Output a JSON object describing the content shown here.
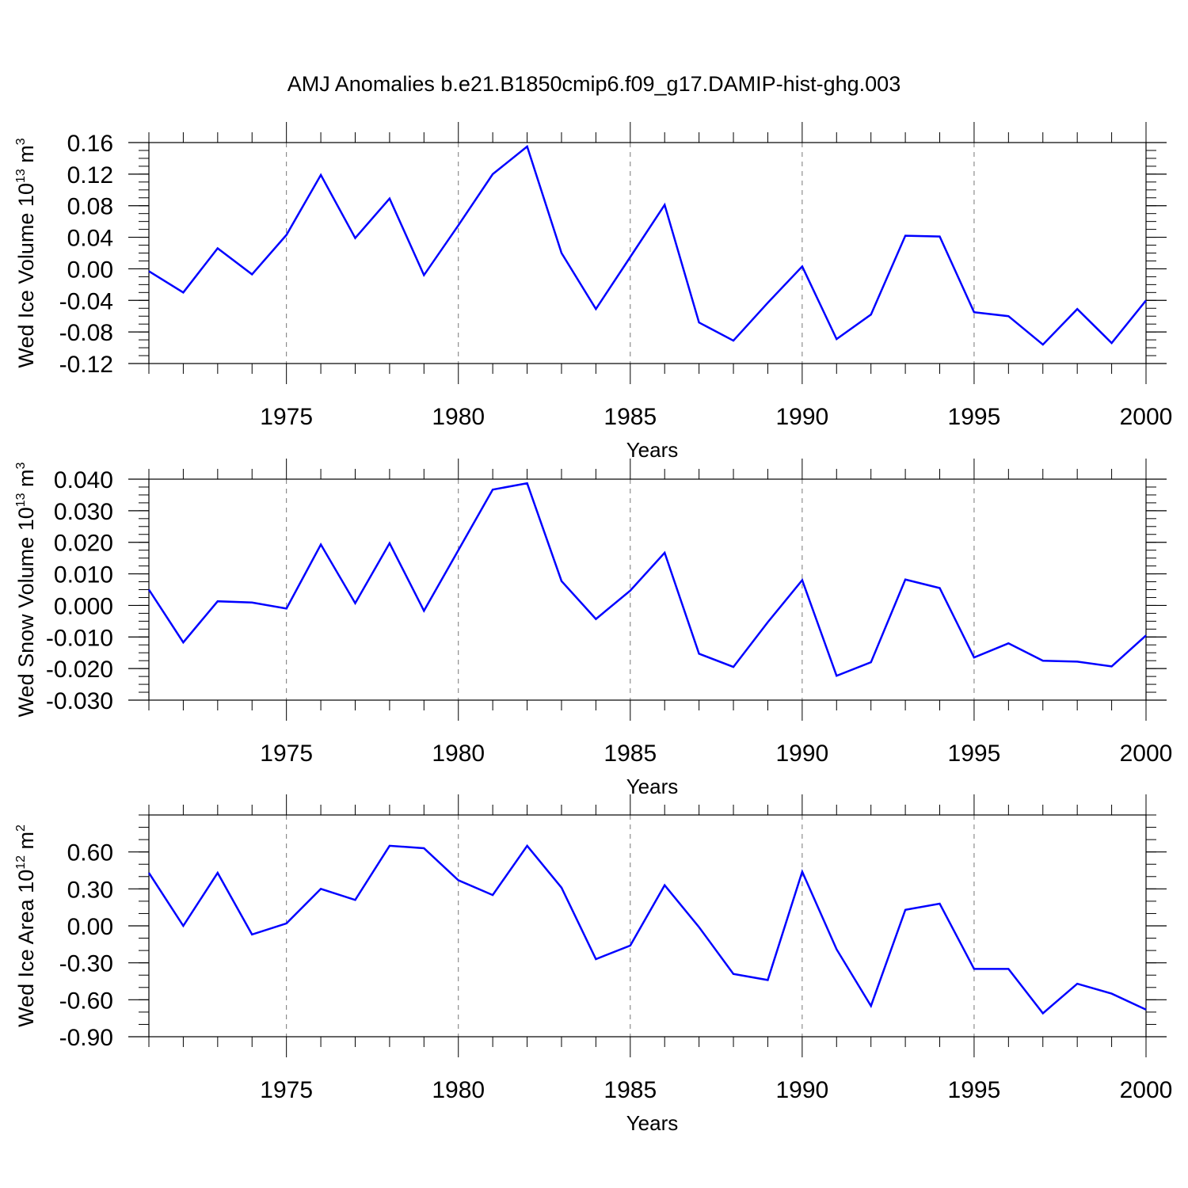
{
  "title": "AMJ Anomalies b.e21.B1850cmip6.f09_g17.DAMIP-hist-ghg.003",
  "line_color": "#0000ff",
  "chart_data": [
    {
      "type": "line",
      "ylabel": {
        "prefix": "Wed Ice Volume 10",
        "exp": "13",
        "unit": " m",
        "unit_exp": "3"
      },
      "xlabel": "Years",
      "xlim": [
        1971,
        2000
      ],
      "ylim": [
        -0.12,
        0.16
      ],
      "yticks": [
        -0.12,
        -0.08,
        -0.04,
        0.0,
        0.04,
        0.08,
        0.12,
        0.16
      ],
      "ytick_labels": [
        "-0.12",
        "-0.08",
        "-0.04",
        "0.00",
        "0.04",
        "0.08",
        "0.12",
        "0.16"
      ],
      "yminor_step": 0.01,
      "xticks": [
        1975,
        1980,
        1985,
        1990,
        1995,
        2000
      ],
      "xtick_labels": [
        "1975",
        "1980",
        "1985",
        "1990",
        "1995",
        "2000"
      ],
      "grid": "vertical dashed at major x ticks",
      "x": [
        1971,
        1972,
        1973,
        1974,
        1975,
        1976,
        1977,
        1978,
        1979,
        1980,
        1981,
        1982,
        1983,
        1984,
        1985,
        1986,
        1987,
        1988,
        1989,
        1990,
        1991,
        1992,
        1993,
        1994,
        1995,
        1996,
        1997,
        1998,
        1999,
        2000
      ],
      "values": [
        -0.003,
        -0.03,
        0.026,
        -0.007,
        0.043,
        0.119,
        0.039,
        0.089,
        -0.008,
        0.055,
        0.12,
        0.155,
        0.02,
        -0.051,
        0.015,
        0.081,
        -0.068,
        -0.091,
        -0.043,
        0.003,
        -0.089,
        -0.058,
        0.042,
        0.041,
        -0.055,
        -0.06,
        -0.096,
        -0.051,
        -0.094,
        -0.04
      ]
    },
    {
      "type": "line",
      "ylabel": {
        "prefix": "Wed Snow Volume 10",
        "exp": "13",
        "unit": " m",
        "unit_exp": "3"
      },
      "xlabel": "Years",
      "xlim": [
        1971,
        2000
      ],
      "ylim": [
        -0.03,
        0.04
      ],
      "yticks": [
        -0.03,
        -0.02,
        -0.01,
        0.0,
        0.01,
        0.02,
        0.03,
        0.04
      ],
      "ytick_labels": [
        "-0.030",
        "-0.020",
        "-0.010",
        "0.000",
        "0.010",
        "0.020",
        "0.030",
        "0.040"
      ],
      "yminor_step": 0.0025,
      "xticks": [
        1975,
        1980,
        1985,
        1990,
        1995,
        2000
      ],
      "xtick_labels": [
        "1975",
        "1980",
        "1985",
        "1990",
        "1995",
        "2000"
      ],
      "grid": "vertical dashed at major x ticks",
      "x": [
        1971,
        1972,
        1973,
        1974,
        1975,
        1976,
        1977,
        1978,
        1979,
        1980,
        1981,
        1982,
        1983,
        1984,
        1985,
        1986,
        1987,
        1988,
        1989,
        1990,
        1991,
        1992,
        1993,
        1994,
        1995,
        1996,
        1997,
        1998,
        1999,
        2000
      ],
      "values": [
        0.005,
        -0.0117,
        0.0013,
        0.0009,
        -0.001,
        0.0193,
        0.0007,
        0.0197,
        -0.0017,
        0.0175,
        0.0367,
        0.0387,
        0.0077,
        -0.0043,
        0.0047,
        0.0167,
        -0.0153,
        -0.0195,
        -0.0053,
        0.008,
        -0.0223,
        -0.018,
        0.0082,
        0.0055,
        -0.0165,
        -0.012,
        -0.0175,
        -0.0178,
        -0.0193,
        -0.0095
      ]
    },
    {
      "type": "line",
      "ylabel": {
        "prefix": "Wed Ice Area 10",
        "exp": "12",
        "unit": " m",
        "unit_exp": "2"
      },
      "xlabel": "Years",
      "xlim": [
        1971,
        2000
      ],
      "ylim": [
        -0.9,
        0.9
      ],
      "yticks": [
        -0.9,
        -0.6,
        -0.3,
        0.0,
        0.3,
        0.6
      ],
      "ytick_labels": [
        "-0.90",
        "-0.60",
        "-0.30",
        "0.00",
        "0.30",
        "0.60"
      ],
      "yminor_step": 0.1,
      "xticks": [
        1975,
        1980,
        1985,
        1990,
        1995,
        2000
      ],
      "xtick_labels": [
        "1975",
        "1980",
        "1985",
        "1990",
        "1995",
        "2000"
      ],
      "grid": "vertical dashed at major x ticks",
      "x": [
        1971,
        1972,
        1973,
        1974,
        1975,
        1976,
        1977,
        1978,
        1979,
        1980,
        1981,
        1982,
        1983,
        1984,
        1985,
        1986,
        1987,
        1988,
        1989,
        1990,
        1991,
        1992,
        1993,
        1994,
        1995,
        1996,
        1997,
        1998,
        1999,
        2000
      ],
      "values": [
        0.43,
        0.0,
        0.43,
        -0.07,
        0.02,
        0.3,
        0.21,
        0.65,
        0.63,
        0.37,
        0.25,
        0.65,
        0.31,
        -0.27,
        -0.16,
        0.33,
        -0.01,
        -0.39,
        -0.44,
        0.44,
        -0.19,
        -0.65,
        0.13,
        0.18,
        -0.35,
        -0.35,
        -0.71,
        -0.47,
        -0.55,
        -0.68
      ]
    }
  ]
}
